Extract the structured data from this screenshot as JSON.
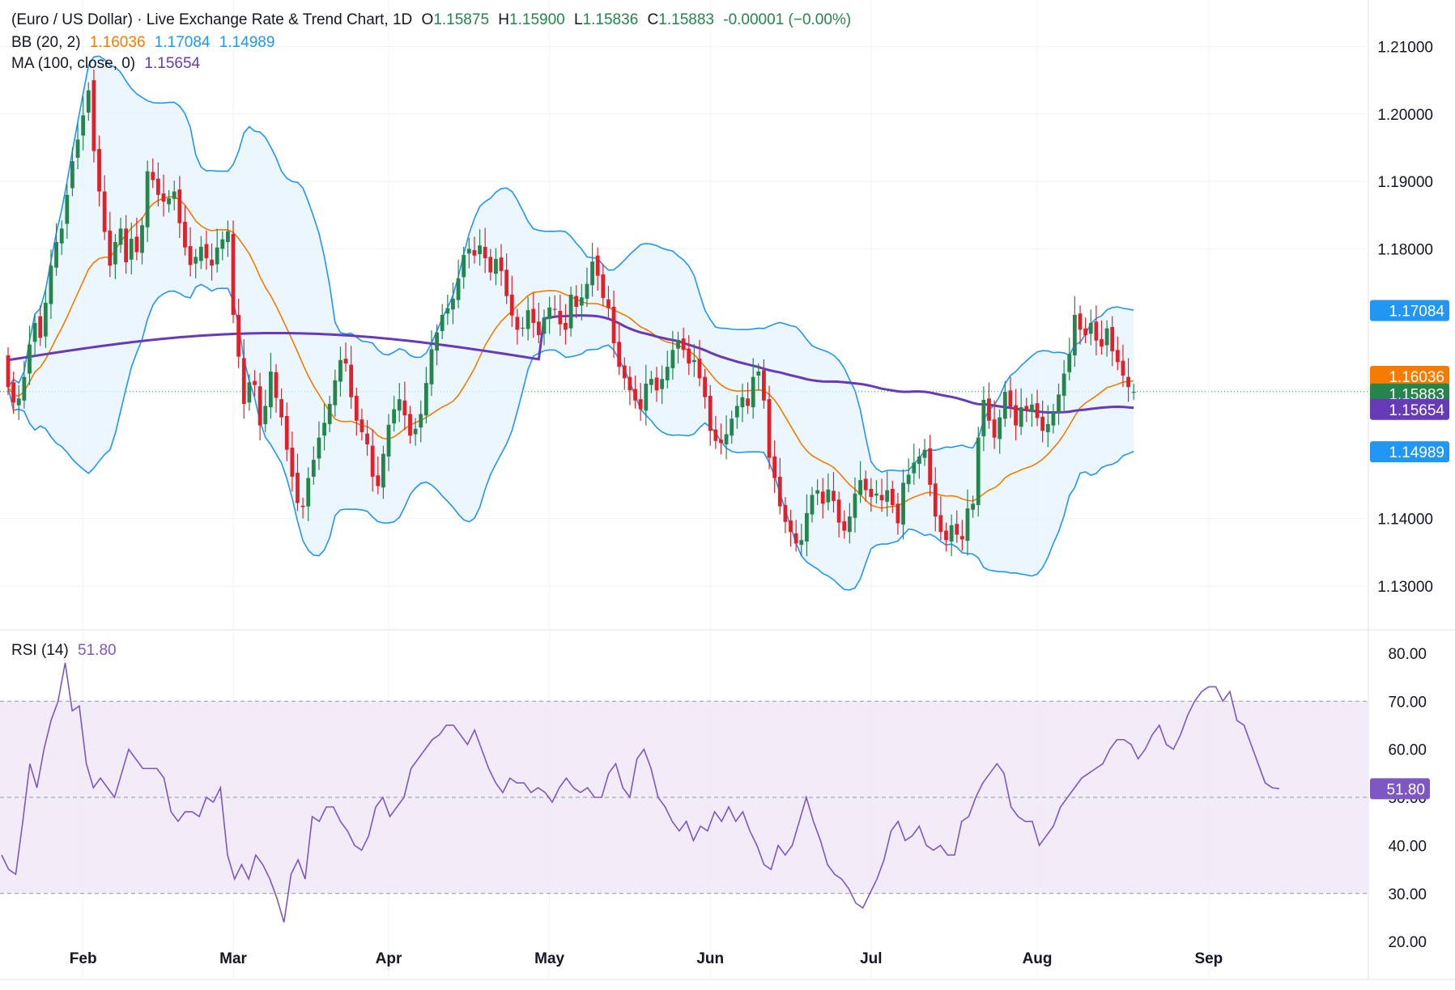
{
  "legend": {
    "symbol": "(Euro / US Dollar) · Live Exchange Rate & Trend Chart, 1D",
    "ohlc": [
      {
        "label": "O",
        "value": "1.15875"
      },
      {
        "label": "H",
        "value": "1.15900"
      },
      {
        "label": "L",
        "value": "1.15836"
      },
      {
        "label": "C",
        "value": "1.15883"
      }
    ],
    "change": "-0.00001 (−0.00%)",
    "bb_label": "BB (20, 2)",
    "bb_values": [
      "1.16036",
      "1.17084",
      "1.14989"
    ],
    "ma_label": "MA (100, close, 0)",
    "ma_value": "1.15654",
    "rsi_label": "RSI (14)",
    "rsi_value": "51.80"
  },
  "colors": {
    "up": "#26854c",
    "down": "#e0212a",
    "bb_basis": "#f57c00",
    "bb_band": "#2196f3",
    "bb_fill": "#e3f2fd",
    "ma": "#673ab7",
    "rsi": "#7e57c2",
    "rsi_fill": "#ede7f6",
    "last_price": "#26854c",
    "text_green": "#26854c",
    "text_orange": "#f57c00",
    "text_blue": "#2196f3",
    "text_purple": "#673ab7"
  },
  "chart_data": [
    {
      "type": "candlestick",
      "title": "(Euro / US Dollar) · Live Exchange Rate & Trend Chart, 1D",
      "x_tick_labels": [
        "Feb",
        "Mar",
        "Apr",
        "May",
        "Jun",
        "Jul",
        "Aug",
        "Sep"
      ],
      "y_tick_labels": [
        "1.21000",
        "1.20000",
        "1.19000",
        "1.18000",
        "1.14000",
        "1.13000"
      ],
      "ylim": [
        1.1235,
        1.2145
      ],
      "price_tags": [
        {
          "label": "1.17084",
          "value": 1.17084,
          "color": "#2196f3"
        },
        {
          "label": "1.16036",
          "value": 1.16036,
          "color": "#f57c00"
        },
        {
          "label": "1.15883",
          "value": 1.15883,
          "color": "#26854c"
        },
        {
          "label": "1.15654",
          "value": 1.15654,
          "color": "#673ab7"
        },
        {
          "label": "1.14989",
          "value": 1.14989,
          "color": "#2196f3"
        }
      ],
      "month_start_index": {
        "Feb": 14,
        "Mar": 42,
        "Apr": 71,
        "May": 101,
        "Jun": 131,
        "Jul": 161,
        "Aug": 192,
        "Sep": 224
      },
      "candles_close": [
        1.1595,
        1.1572,
        1.1578,
        1.161,
        1.1658,
        1.169,
        1.1668,
        1.172,
        1.1775,
        1.181,
        1.183,
        1.188,
        1.193,
        1.1962,
        1.1998,
        1.2035,
        1.1945,
        1.1885,
        1.1825,
        1.1775,
        1.181,
        1.183,
        1.178,
        1.1815,
        1.1795,
        1.1835,
        1.1915,
        1.1902,
        1.188,
        1.187,
        1.1875,
        1.1885,
        1.1838,
        1.1802,
        1.1776,
        1.1788,
        1.1803,
        1.1786,
        1.1775,
        1.1802,
        1.1814,
        1.1826,
        1.1702,
        1.164,
        1.157,
        1.1602,
        1.1598,
        1.1538,
        1.1567,
        1.1618,
        1.1579,
        1.155,
        1.1502,
        1.1462,
        1.1423,
        1.1417,
        1.146,
        1.1487,
        1.152,
        1.1542,
        1.157,
        1.1605,
        1.1635,
        1.163,
        1.158,
        1.1545,
        1.1528,
        1.151,
        1.1462,
        1.1448,
        1.1496,
        1.1539,
        1.1562,
        1.1577,
        1.1553,
        1.1523,
        1.1533,
        1.1555,
        1.1601,
        1.1651,
        1.1676,
        1.1702,
        1.1712,
        1.1726,
        1.1756,
        1.1791,
        1.18,
        1.179,
        1.1805,
        1.1786,
        1.1765,
        1.1785,
        1.1767,
        1.173,
        1.1701,
        1.168,
        1.1683,
        1.1709,
        1.169,
        1.1672,
        1.1698,
        1.1713,
        1.171,
        1.1688,
        1.168,
        1.1732,
        1.1714,
        1.1728,
        1.1748,
        1.1781,
        1.176,
        1.1727,
        1.1712,
        1.166,
        1.1625,
        1.1608,
        1.159,
        1.1575,
        1.1562,
        1.16,
        1.1607,
        1.159,
        1.1607,
        1.1625,
        1.165,
        1.1665,
        1.165,
        1.163,
        1.1635,
        1.1608,
        1.158,
        1.153,
        1.1515,
        1.1512,
        1.1525,
        1.1548,
        1.1567,
        1.158,
        1.1567,
        1.161,
        1.1618,
        1.1575,
        1.149,
        1.146,
        1.1418,
        1.1395,
        1.138,
        1.1363,
        1.1368,
        1.1408,
        1.1435,
        1.1442,
        1.1422,
        1.1443,
        1.1426,
        1.1394,
        1.1382,
        1.1403,
        1.1437,
        1.1457,
        1.1442,
        1.1432,
        1.1437,
        1.1427,
        1.1442,
        1.142,
        1.1393,
        1.1453,
        1.1465,
        1.1483,
        1.1492,
        1.1502,
        1.145,
        1.1403,
        1.138,
        1.1368,
        1.139,
        1.1376,
        1.1369,
        1.1415,
        1.1422,
        1.152,
        1.1576,
        1.1545,
        1.152,
        1.155,
        1.1588,
        1.1566,
        1.1538,
        1.1565,
        1.156,
        1.1569,
        1.1549,
        1.153,
        1.154,
        1.1558,
        1.1584,
        1.1615,
        1.1644,
        1.1702,
        1.168,
        1.1672,
        1.169,
        1.1664,
        1.1655,
        1.1682,
        1.1648,
        1.1632,
        1.1612,
        1.1595,
        1.1588
      ],
      "candles_open": [
        1.1642,
        1.1602,
        1.1568,
        1.1575,
        1.1615,
        1.1662,
        1.17,
        1.167,
        1.1718,
        1.1772,
        1.1808,
        1.1837,
        1.189,
        1.1935,
        1.1968,
        1.2002,
        1.205,
        1.1948,
        1.1885,
        1.1827,
        1.1777,
        1.1806,
        1.183,
        1.1784,
        1.1818,
        1.1794,
        1.1832,
        1.1914,
        1.1904,
        1.1882,
        1.1866,
        1.1874,
        1.1888,
        1.184,
        1.1804,
        1.1778,
        1.1782,
        1.1807,
        1.1784,
        1.1777,
        1.18,
        1.181,
        1.1822,
        1.1702,
        1.1638,
        1.1572,
        1.1604,
        1.1596,
        1.154,
        1.1565,
        1.1617,
        1.1577,
        1.1552,
        1.1505,
        1.1468,
        1.1419,
        1.1418,
        1.1462,
        1.1489,
        1.1523,
        1.154,
        1.1568,
        1.1603,
        1.1637,
        1.1628,
        1.1582,
        1.1547,
        1.1526,
        1.1508,
        1.1464,
        1.1446,
        1.1492,
        1.1541,
        1.156,
        1.1575,
        1.1555,
        1.1525,
        1.1535,
        1.1553,
        1.1599,
        1.1649,
        1.1678,
        1.1704,
        1.171,
        1.1724,
        1.1758,
        1.1793,
        1.1798,
        1.1792,
        1.1803,
        1.1788,
        1.1763,
        1.1787,
        1.1769,
        1.1732,
        1.1699,
        1.1682,
        1.1681,
        1.1711,
        1.1692,
        1.1674,
        1.1696,
        1.1711,
        1.1708,
        1.169,
        1.1682,
        1.173,
        1.1716,
        1.1726,
        1.1746,
        1.179,
        1.1762,
        1.1725,
        1.1714,
        1.1662,
        1.1627,
        1.161,
        1.1592,
        1.1577,
        1.156,
        1.1598,
        1.1609,
        1.1592,
        1.1605,
        1.1623,
        1.1652,
        1.1667,
        1.1652,
        1.1632,
        1.1637,
        1.161,
        1.1582,
        1.1532,
        1.1517,
        1.151,
        1.1523,
        1.155,
        1.1565,
        1.1578,
        1.1565,
        1.1612,
        1.162,
        1.1577,
        1.1492,
        1.1462,
        1.142,
        1.1397,
        1.1378,
        1.1361,
        1.1366,
        1.1406,
        1.1437,
        1.144,
        1.1424,
        1.1441,
        1.1428,
        1.1396,
        1.138,
        1.1401,
        1.1435,
        1.1459,
        1.1444,
        1.1434,
        1.1435,
        1.1425,
        1.1444,
        1.1422,
        1.1391,
        1.1451,
        1.1467,
        1.1481,
        1.149,
        1.1504,
        1.1452,
        1.1405,
        1.1382,
        1.1366,
        1.1392,
        1.1374,
        1.1367,
        1.1413,
        1.142,
        1.1522,
        1.1578,
        1.1547,
        1.1518,
        1.1548,
        1.159,
        1.1568,
        1.1536,
        1.1567,
        1.1558,
        1.1571,
        1.1551,
        1.1528,
        1.1538,
        1.1556,
        1.1582,
        1.1617,
        1.1642,
        1.1704,
        1.1682,
        1.1674,
        1.1692,
        1.1666,
        1.1657,
        1.1684,
        1.165,
        1.1634,
        1.161,
        1.1588
      ]
    },
    {
      "type": "line",
      "title": "RSI (14)",
      "y_tick_labels": [
        "80.00",
        "70.00",
        "60.00",
        "50.00",
        "40.00",
        "30.00",
        "20.00"
      ],
      "ylim": [
        18,
        82
      ],
      "band": [
        30,
        70
      ],
      "midline": 50,
      "last_value_label": "51.80",
      "values": [
        38,
        35,
        34,
        45,
        57,
        52,
        60,
        66,
        70,
        78,
        68,
        69,
        57,
        52,
        54,
        52,
        50,
        55,
        60,
        58,
        56,
        56,
        56,
        54,
        47,
        45,
        47,
        47,
        46,
        50,
        49,
        52,
        38,
        33,
        36,
        33,
        38,
        36,
        33,
        29,
        24,
        34,
        37,
        33,
        46,
        45,
        48,
        48,
        45,
        43,
        40,
        39,
        42,
        48,
        50,
        46,
        48,
        50,
        56,
        58,
        60,
        62,
        63,
        65,
        65,
        63,
        61,
        64,
        60,
        56,
        53,
        51,
        54,
        53,
        53,
        51,
        52,
        51,
        49,
        52,
        54,
        52,
        51,
        52,
        50,
        50,
        55,
        57,
        52,
        50,
        58,
        60,
        56,
        50,
        48,
        45,
        43,
        45,
        41,
        44,
        43,
        47,
        45,
        48,
        45,
        47,
        43,
        40,
        36,
        35,
        40,
        38,
        40,
        45,
        50,
        45,
        41,
        36,
        34,
        33,
        31,
        28,
        27,
        30,
        33,
        37,
        43,
        45,
        41,
        42,
        44,
        40,
        39,
        40,
        38,
        38,
        45,
        46,
        50,
        53,
        55,
        57,
        55,
        48,
        46,
        45,
        45,
        40,
        42,
        44,
        48,
        50,
        52,
        54,
        55,
        56,
        57,
        60,
        62,
        62,
        61,
        58,
        60,
        63,
        65,
        61,
        60,
        63,
        67,
        70,
        72,
        73,
        73,
        70,
        72,
        66,
        65,
        61,
        57,
        53,
        52,
        51.8
      ]
    }
  ]
}
